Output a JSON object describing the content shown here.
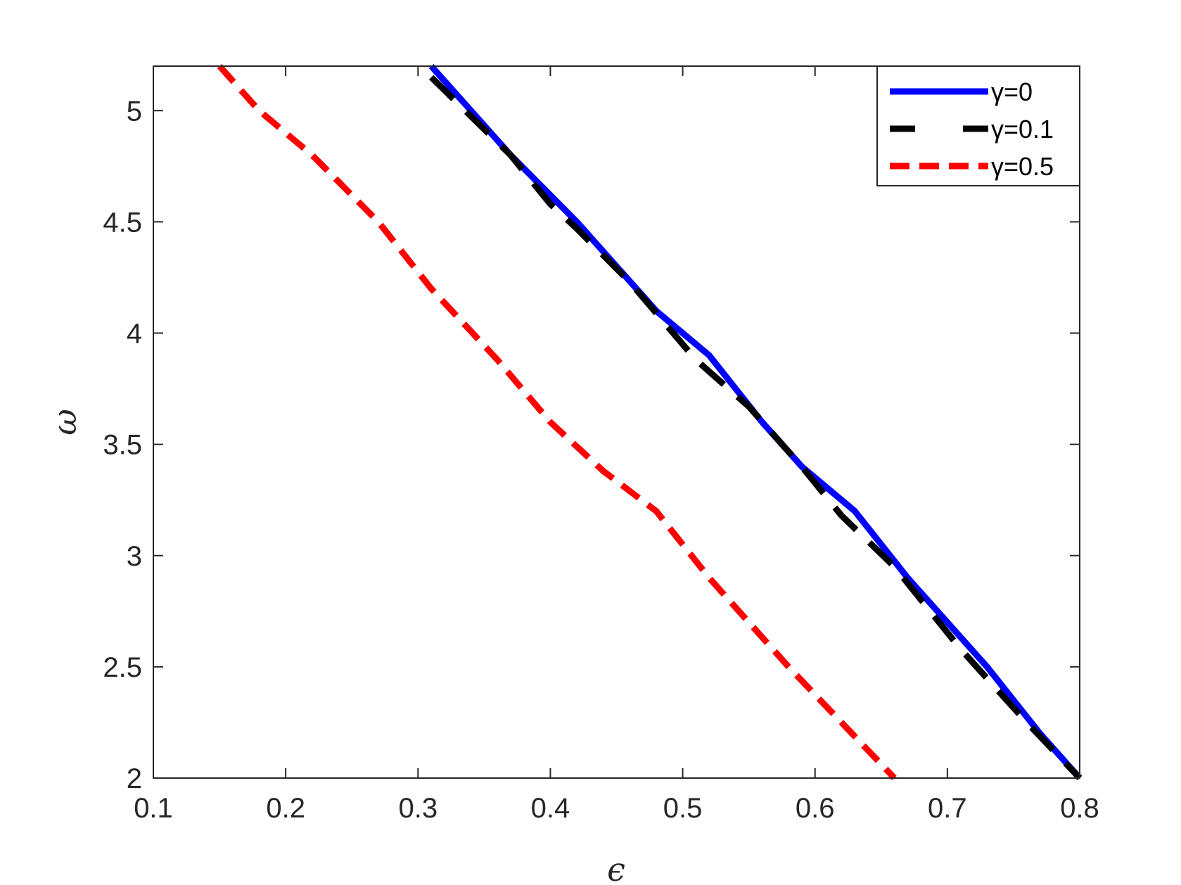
{
  "chart_data": {
    "type": "line",
    "title": "",
    "xlabel": "ϵ",
    "ylabel": "ω",
    "xlim": [
      0.1,
      0.8
    ],
    "ylim": [
      2,
      5.2
    ],
    "xticks": [
      0.1,
      0.2,
      0.3,
      0.4,
      0.5,
      0.6,
      0.7,
      0.8
    ],
    "xtick_labels": [
      "0.1",
      "0.2",
      "0.3",
      "0.4",
      "0.5",
      "0.6",
      "0.7",
      "0.8"
    ],
    "yticks": [
      2,
      2.5,
      3,
      3.5,
      4,
      4.5,
      5
    ],
    "ytick_labels": [
      "2",
      "2.5",
      "3",
      "3.5",
      "4",
      "4.5",
      "5"
    ],
    "grid": false,
    "legend_position": "top-right",
    "series": [
      {
        "name": "γ=0",
        "color": "#0000ff",
        "style": "solid",
        "x": [
          0.31,
          0.37,
          0.42,
          0.48,
          0.52,
          0.56,
          0.59,
          0.63,
          0.67,
          0.73,
          0.77,
          0.8
        ],
        "y": [
          5.2,
          4.8,
          4.5,
          4.1,
          3.9,
          3.6,
          3.4,
          3.2,
          2.9,
          2.5,
          2.2,
          2.0
        ]
      },
      {
        "name": "γ=0.1",
        "color": "#000000",
        "style": "dashed",
        "x": [
          0.31,
          0.37,
          0.4,
          0.42,
          0.46,
          0.51,
          0.55,
          0.59,
          0.62,
          0.66,
          0.71,
          0.76,
          0.8
        ],
        "y": [
          5.15,
          4.8,
          4.58,
          4.47,
          4.23,
          3.88,
          3.67,
          3.4,
          3.18,
          2.95,
          2.58,
          2.25,
          2.0
        ]
      },
      {
        "name": "γ=0.5",
        "color": "#ff0000",
        "style": "dashed",
        "x": [
          0.15,
          0.18,
          0.22,
          0.27,
          0.31,
          0.36,
          0.4,
          0.44,
          0.48,
          0.52,
          0.58,
          0.62,
          0.66
        ],
        "y": [
          5.2,
          5.0,
          4.8,
          4.5,
          4.2,
          3.88,
          3.6,
          3.38,
          3.2,
          2.9,
          2.5,
          2.25,
          2.0
        ]
      }
    ]
  }
}
